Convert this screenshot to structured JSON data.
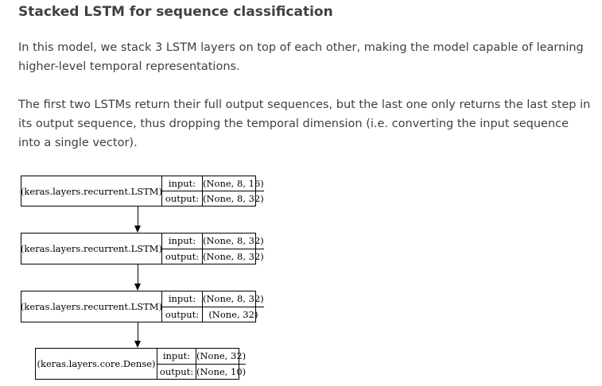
{
  "heading": "Stacked LSTM for sequence classification",
  "paragraphs": [
    "In this model, we stack 3 LSTM layers on top of each other, making the model capable of learning higher-level temporal representations.",
    "The first two LSTMs return their full output sequences, but the last one only returns the last step in its output sequence, thus dropping the temporal dimension (i.e. converting the input sequence into a single vector)."
  ],
  "diagram": {
    "input_label": "input:",
    "output_label": "output:",
    "layers": [
      {
        "name": "(keras.layers.recurrent.LSTM)",
        "input": "(None, 8, 16)",
        "output": "(None, 8, 32)"
      },
      {
        "name": "(keras.layers.recurrent.LSTM)",
        "input": "(None, 8, 32)",
        "output": "(None, 8, 32)"
      },
      {
        "name": "(keras.layers.recurrent.LSTM)",
        "input": "(None, 8, 32)",
        "output": "(None, 32)"
      },
      {
        "name": "(keras.layers.core.Dense)",
        "input": "(None, 32)",
        "output": "(None, 10)"
      }
    ]
  }
}
